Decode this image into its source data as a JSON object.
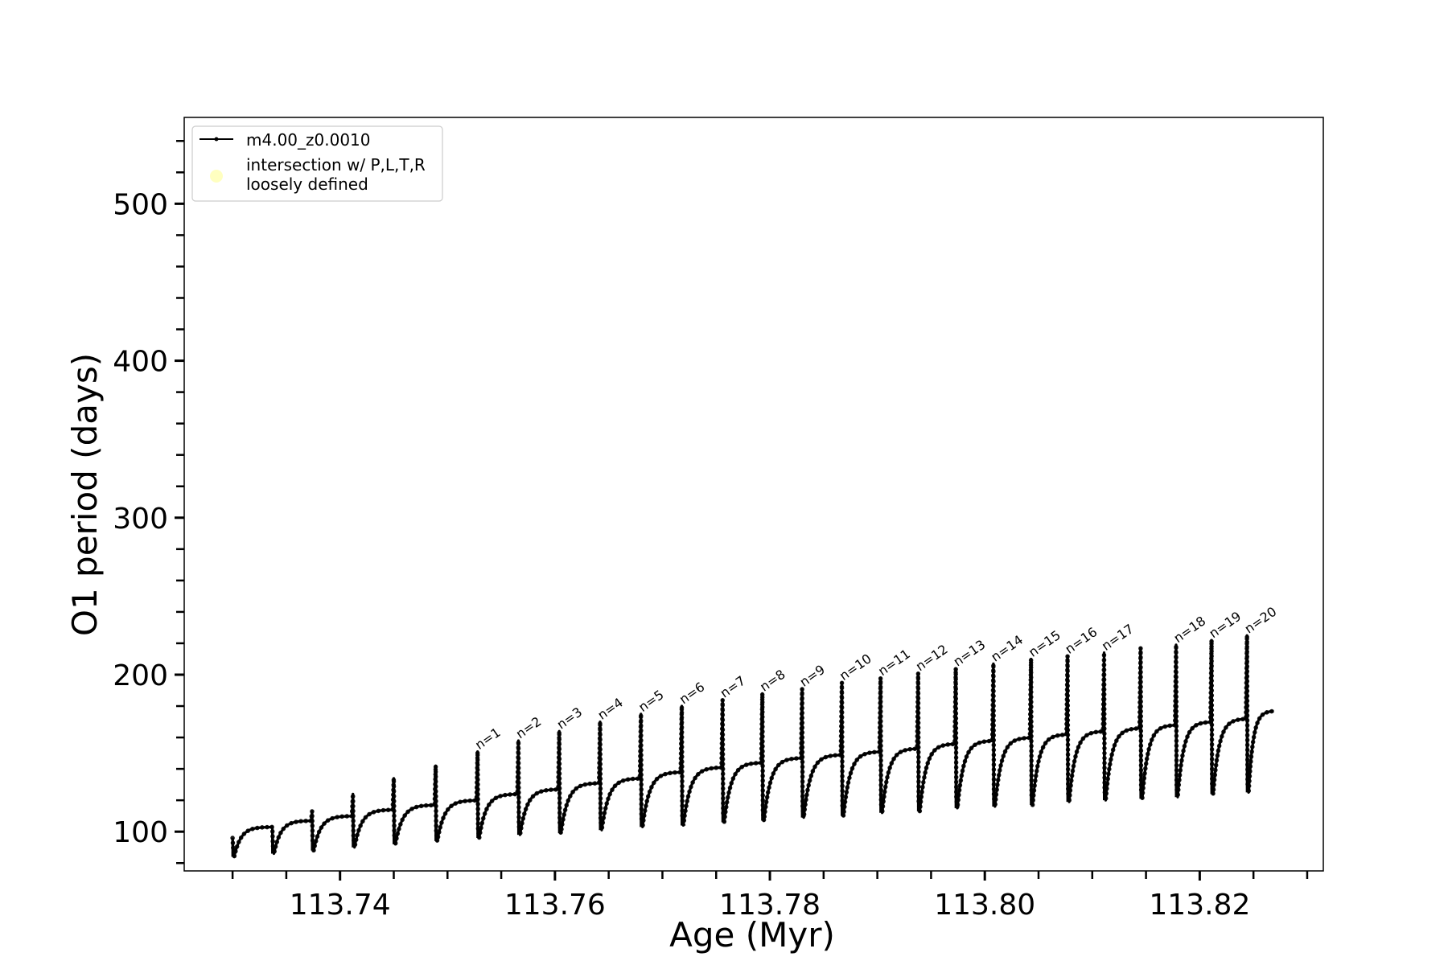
{
  "chart_data": {
    "type": "line",
    "xlabel": "Age (Myr)",
    "ylabel": "O1 period (days)",
    "xlim": [
      113.7255,
      113.8315
    ],
    "ylim": [
      75,
      555
    ],
    "x_ticks": [
      113.74,
      113.76,
      113.78,
      113.8,
      113.82
    ],
    "x_tick_labels": [
      "113.74",
      "113.76",
      "113.78",
      "113.80",
      "113.82"
    ],
    "x_minor_tick_step": 0.005,
    "y_ticks": [
      100,
      200,
      300,
      400,
      500
    ],
    "y_tick_labels": [
      "100",
      "200",
      "300",
      "400",
      "500"
    ],
    "y_minor_tick_step": 20,
    "grid": false,
    "legend": {
      "placement": "upper-left",
      "entries": [
        {
          "label": "m4.00_z0.0010",
          "marker": "line-dot",
          "color": "#000000"
        },
        {
          "label": "intersection w/ P,L,T,R loosely defined",
          "label_lines": [
            "intersection w/ P,L,T,R",
            "loosely defined"
          ],
          "marker": "circle",
          "color": "#ffffc0"
        }
      ]
    },
    "series": [
      {
        "name": "m4.00_z0.0010",
        "color": "#000000",
        "x_start": 113.73,
        "x_end": 113.827,
        "pulses": [
          {
            "x": 113.73,
            "max": 96,
            "min": 84,
            "plateau": 103
          },
          {
            "x": 113.7337,
            "max": 103,
            "min": 86,
            "plateau": 107
          },
          {
            "x": 113.7374,
            "max": 113,
            "min": 88,
            "plateau": 110
          },
          {
            "x": 113.7412,
            "max": 124,
            "min": 90,
            "plateau": 114
          },
          {
            "x": 113.745,
            "max": 134,
            "min": 92,
            "plateau": 117
          },
          {
            "x": 113.7489,
            "max": 142,
            "min": 94,
            "plateau": 120
          },
          {
            "x": 113.7528,
            "max": 151,
            "min": 96,
            "plateau": 124,
            "label": "n=1"
          },
          {
            "x": 113.7566,
            "max": 158,
            "min": 98,
            "plateau": 127,
            "label": "n=2"
          },
          {
            "x": 113.7604,
            "max": 164,
            "min": 99,
            "plateau": 131,
            "label": "n=3"
          },
          {
            "x": 113.7642,
            "max": 170,
            "min": 101,
            "plateau": 134,
            "label": "n=4"
          },
          {
            "x": 113.768,
            "max": 175,
            "min": 103,
            "plateau": 138,
            "label": "n=5"
          },
          {
            "x": 113.7718,
            "max": 180,
            "min": 104,
            "plateau": 141,
            "label": "n=6"
          },
          {
            "x": 113.7756,
            "max": 184,
            "min": 106,
            "plateau": 144,
            "label": "n=7"
          },
          {
            "x": 113.7793,
            "max": 188,
            "min": 107,
            "plateau": 147,
            "label": "n=8"
          },
          {
            "x": 113.783,
            "max": 191,
            "min": 109,
            "plateau": 149,
            "label": "n=9"
          },
          {
            "x": 113.7867,
            "max": 195,
            "min": 110,
            "plateau": 151,
            "label": "n=10"
          },
          {
            "x": 113.7903,
            "max": 198,
            "min": 112,
            "plateau": 153,
            "label": "n=11"
          },
          {
            "x": 113.7938,
            "max": 201,
            "min": 113,
            "plateau": 156,
            "label": "n=12"
          },
          {
            "x": 113.7973,
            "max": 204,
            "min": 115,
            "plateau": 158,
            "label": "n=13"
          },
          {
            "x": 113.8008,
            "max": 207,
            "min": 116,
            "plateau": 160,
            "label": "n=14"
          },
          {
            "x": 113.8043,
            "max": 210,
            "min": 117,
            "plateau": 162,
            "label": "n=15"
          },
          {
            "x": 113.8077,
            "max": 212,
            "min": 119,
            "plateau": 164,
            "label": "n=16"
          },
          {
            "x": 113.8111,
            "max": 214,
            "min": 120,
            "plateau": 166,
            "label": "n=17"
          },
          {
            "x": 113.8145,
            "max": 217,
            "min": 121,
            "plateau": 168
          },
          {
            "x": 113.8178,
            "max": 219,
            "min": 122,
            "plateau": 170,
            "label": "n=18"
          },
          {
            "x": 113.8211,
            "max": 222,
            "min": 124,
            "plateau": 172,
            "label": "n=19"
          },
          {
            "x": 113.8244,
            "max": 225,
            "min": 125,
            "plateau": 177,
            "label": "n=20"
          }
        ]
      }
    ]
  }
}
